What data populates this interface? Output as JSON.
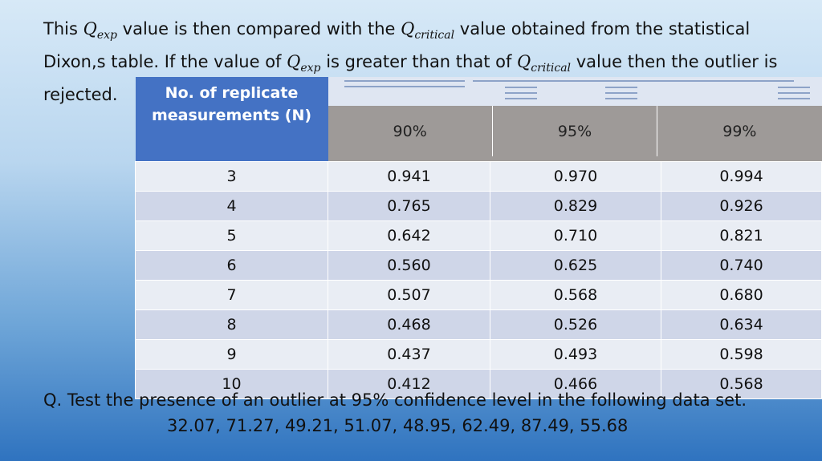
{
  "intro": {
    "p1": "This ",
    "q_exp": "Q",
    "q_exp_sub": "exp",
    "p2": " value is then compared with the ",
    "q_crit": "Q",
    "q_crit_sub": "critical",
    "p3": " value obtained from the statistical Dixon,s table. If the value of ",
    "p4": " is greater than that of ",
    "p5": " value then the outlier is rejected."
  },
  "table": {
    "header_n": "No. of replicate measurements (N)",
    "confidence_levels": [
      "90%",
      "95%",
      "99%"
    ],
    "rows": [
      {
        "n": "3",
        "c90": "0.941",
        "c95": "0.970",
        "c99": "0.994"
      },
      {
        "n": "4",
        "c90": "0.765",
        "c95": "0.829",
        "c99": "0.926"
      },
      {
        "n": "5",
        "c90": "0.642",
        "c95": "0.710",
        "c99": "0.821"
      },
      {
        "n": "6",
        "c90": "0.560",
        "c95": "0.625",
        "c99": "0.740"
      },
      {
        "n": "7",
        "c90": "0.507",
        "c95": "0.568",
        "c99": "0.680"
      },
      {
        "n": "8",
        "c90": "0.468",
        "c95": "0.526",
        "c99": "0.634"
      },
      {
        "n": "9",
        "c90": "0.437",
        "c95": "0.493",
        "c99": "0.598"
      },
      {
        "n": "10",
        "c90": "0.412",
        "c95": "0.466",
        "c99": "0.568"
      }
    ]
  },
  "question": "Q. Test the presence of an outlier at 95% confidence level in the following data set.",
  "dataset": "32.07, 71.27, 49.21, 51.07, 48.95, 62.49, 87.49, 55.68",
  "colors": {
    "header_blue": "#4472c4",
    "header_gray": "#9e9a98",
    "row_light": "#e9edf4",
    "row_dark": "#cfd6e8"
  }
}
